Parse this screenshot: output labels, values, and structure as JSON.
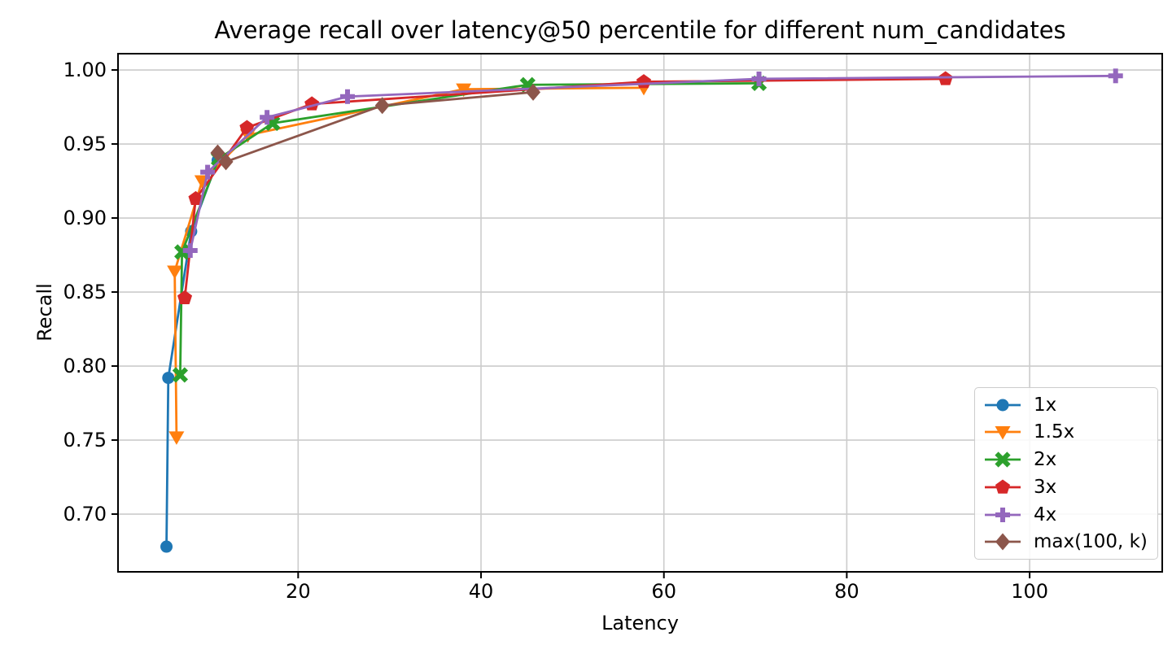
{
  "chart_data": {
    "type": "line",
    "title": "Average recall over latency@50 percentile for different num_candidates",
    "xlabel": "Latency",
    "ylabel": "Recall",
    "xlim": [
      0.3,
      114.5
    ],
    "ylim": [
      0.661,
      1.011
    ],
    "x_ticks": [
      20,
      40,
      60,
      80,
      100
    ],
    "y_ticks": [
      0.7,
      0.75,
      0.8,
      0.85,
      0.9,
      0.95,
      1.0
    ],
    "y_tick_labels": [
      "0.70",
      "0.75",
      "0.80",
      "0.85",
      "0.90",
      "0.95",
      "1.00"
    ],
    "grid": true,
    "grid_color": "#cccccc",
    "axis_color": "#000000",
    "background_color": "#ffffff",
    "legend_position": "lower right",
    "series": [
      {
        "name": "1x",
        "color": "#1f77b4",
        "marker": "circle",
        "points": [
          [
            5.6,
            0.678
          ],
          [
            5.8,
            0.792
          ],
          [
            8.3,
            0.891
          ],
          [
            11.2,
            0.939
          ]
        ]
      },
      {
        "name": "1.5x",
        "color": "#ff7f0e",
        "marker": "triangle_down",
        "points": [
          [
            6.7,
            0.752
          ],
          [
            6.5,
            0.864
          ],
          [
            9.5,
            0.925
          ],
          [
            14.5,
            0.956
          ],
          [
            38.1,
            0.987
          ],
          [
            57.8,
            0.988
          ]
        ]
      },
      {
        "name": "2x",
        "color": "#2ca02c",
        "marker": "x_filled",
        "points": [
          [
            7.1,
            0.794
          ],
          [
            7.3,
            0.877
          ],
          [
            11.3,
            0.94
          ],
          [
            17.2,
            0.964
          ],
          [
            45.1,
            0.99
          ],
          [
            70.4,
            0.991
          ]
        ]
      },
      {
        "name": "3x",
        "color": "#d62728",
        "marker": "pentagon",
        "points": [
          [
            7.6,
            0.846
          ],
          [
            8.8,
            0.913
          ],
          [
            14.4,
            0.961
          ],
          [
            21.5,
            0.977
          ],
          [
            57.8,
            0.992
          ],
          [
            90.8,
            0.994
          ]
        ]
      },
      {
        "name": "4x",
        "color": "#9467bd",
        "marker": "plus_filled",
        "points": [
          [
            8.2,
            0.878
          ],
          [
            10.1,
            0.931
          ],
          [
            16.6,
            0.968
          ],
          [
            25.4,
            0.982
          ],
          [
            70.4,
            0.994
          ],
          [
            109.4,
            0.996
          ]
        ]
      },
      {
        "name": "max(100, k)",
        "color": "#8c564b",
        "marker": "diamond",
        "points": [
          [
            11.2,
            0.944
          ],
          [
            12.1,
            0.938
          ],
          [
            29.2,
            0.976
          ],
          [
            45.7,
            0.985
          ]
        ]
      }
    ]
  }
}
